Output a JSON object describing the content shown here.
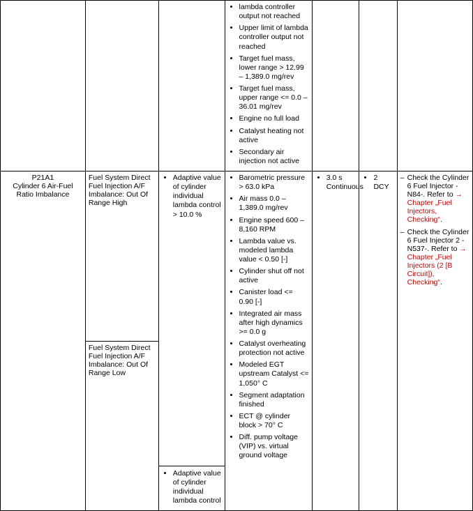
{
  "colwidths": [
    "18%",
    "15.5%",
    "14%",
    "18.5%",
    "10%",
    "8%",
    "16%"
  ],
  "row0": {
    "c3_bullets": [
      "lambda controller output not reached",
      "Upper limit of lambda controller output not reached",
      "Target fuel mass, lower range > 12.99 – 1,389.0 mg/rev",
      "Target fuel mass, upper range <= 0.0 – 36.01 mg/rev",
      "Engine no full load",
      "Catalyst heating not active",
      "Secondary air injection not active"
    ]
  },
  "row1": {
    "code": "P21A1",
    "code_desc": "Cylinder 6 Air-Fuel Ratio Imbalance",
    "c1": "Fuel System Direct Fuel Injection A/F Imbalance: Out Of Range High",
    "c2_bullets": [
      "Adaptive value of cylinder individual lambda control > 10.0 %"
    ],
    "c3_bullets": [
      "Barometric pressure > 63.0 kPa",
      "Air mass 0.0 – 1,389.0 mg/rev",
      "Engine speed 600 – 8,160 RPM",
      "Lambda value vs. modeled lambda value < 0.50 [-]",
      "Cylinder shut off not active",
      "Canister load <= 0.90 [-]",
      "Integrated air mass after high dynamics >= 0.0 g",
      "Catalyst overheating protection not active",
      "Modeled EGT upstream Catalyst <= 1,050° C",
      "Segment adaptation finished",
      "ECT @ cylinder block > 70° C",
      "Diff. pump voltage (VIP) vs. virtual ground voltage"
    ],
    "c4_bullets": [
      "3.0 s Continuous"
    ],
    "c5_bullets": [
      "2 DCY"
    ],
    "c6_items": [
      {
        "pre": "Check the Cylinder 6 Fuel Injector -N84-. Refer to ",
        "link": "→ Chapter „Fuel Injectors, Checking“",
        "post": "."
      },
      {
        "pre": "Check the Cylinder 6 Fuel Injector 2 -N537-. Refer to ",
        "link": "→ Chapter „Fuel Injectors (2 [B Circuit]), Checking“",
        "post": "."
      }
    ]
  },
  "row2": {
    "c1": "Fuel System Direct Fuel Injection A/F Imbalance: Out Of Range Low",
    "c2_bullets": [
      "Adaptive value of cylinder individual lambda control"
    ]
  }
}
